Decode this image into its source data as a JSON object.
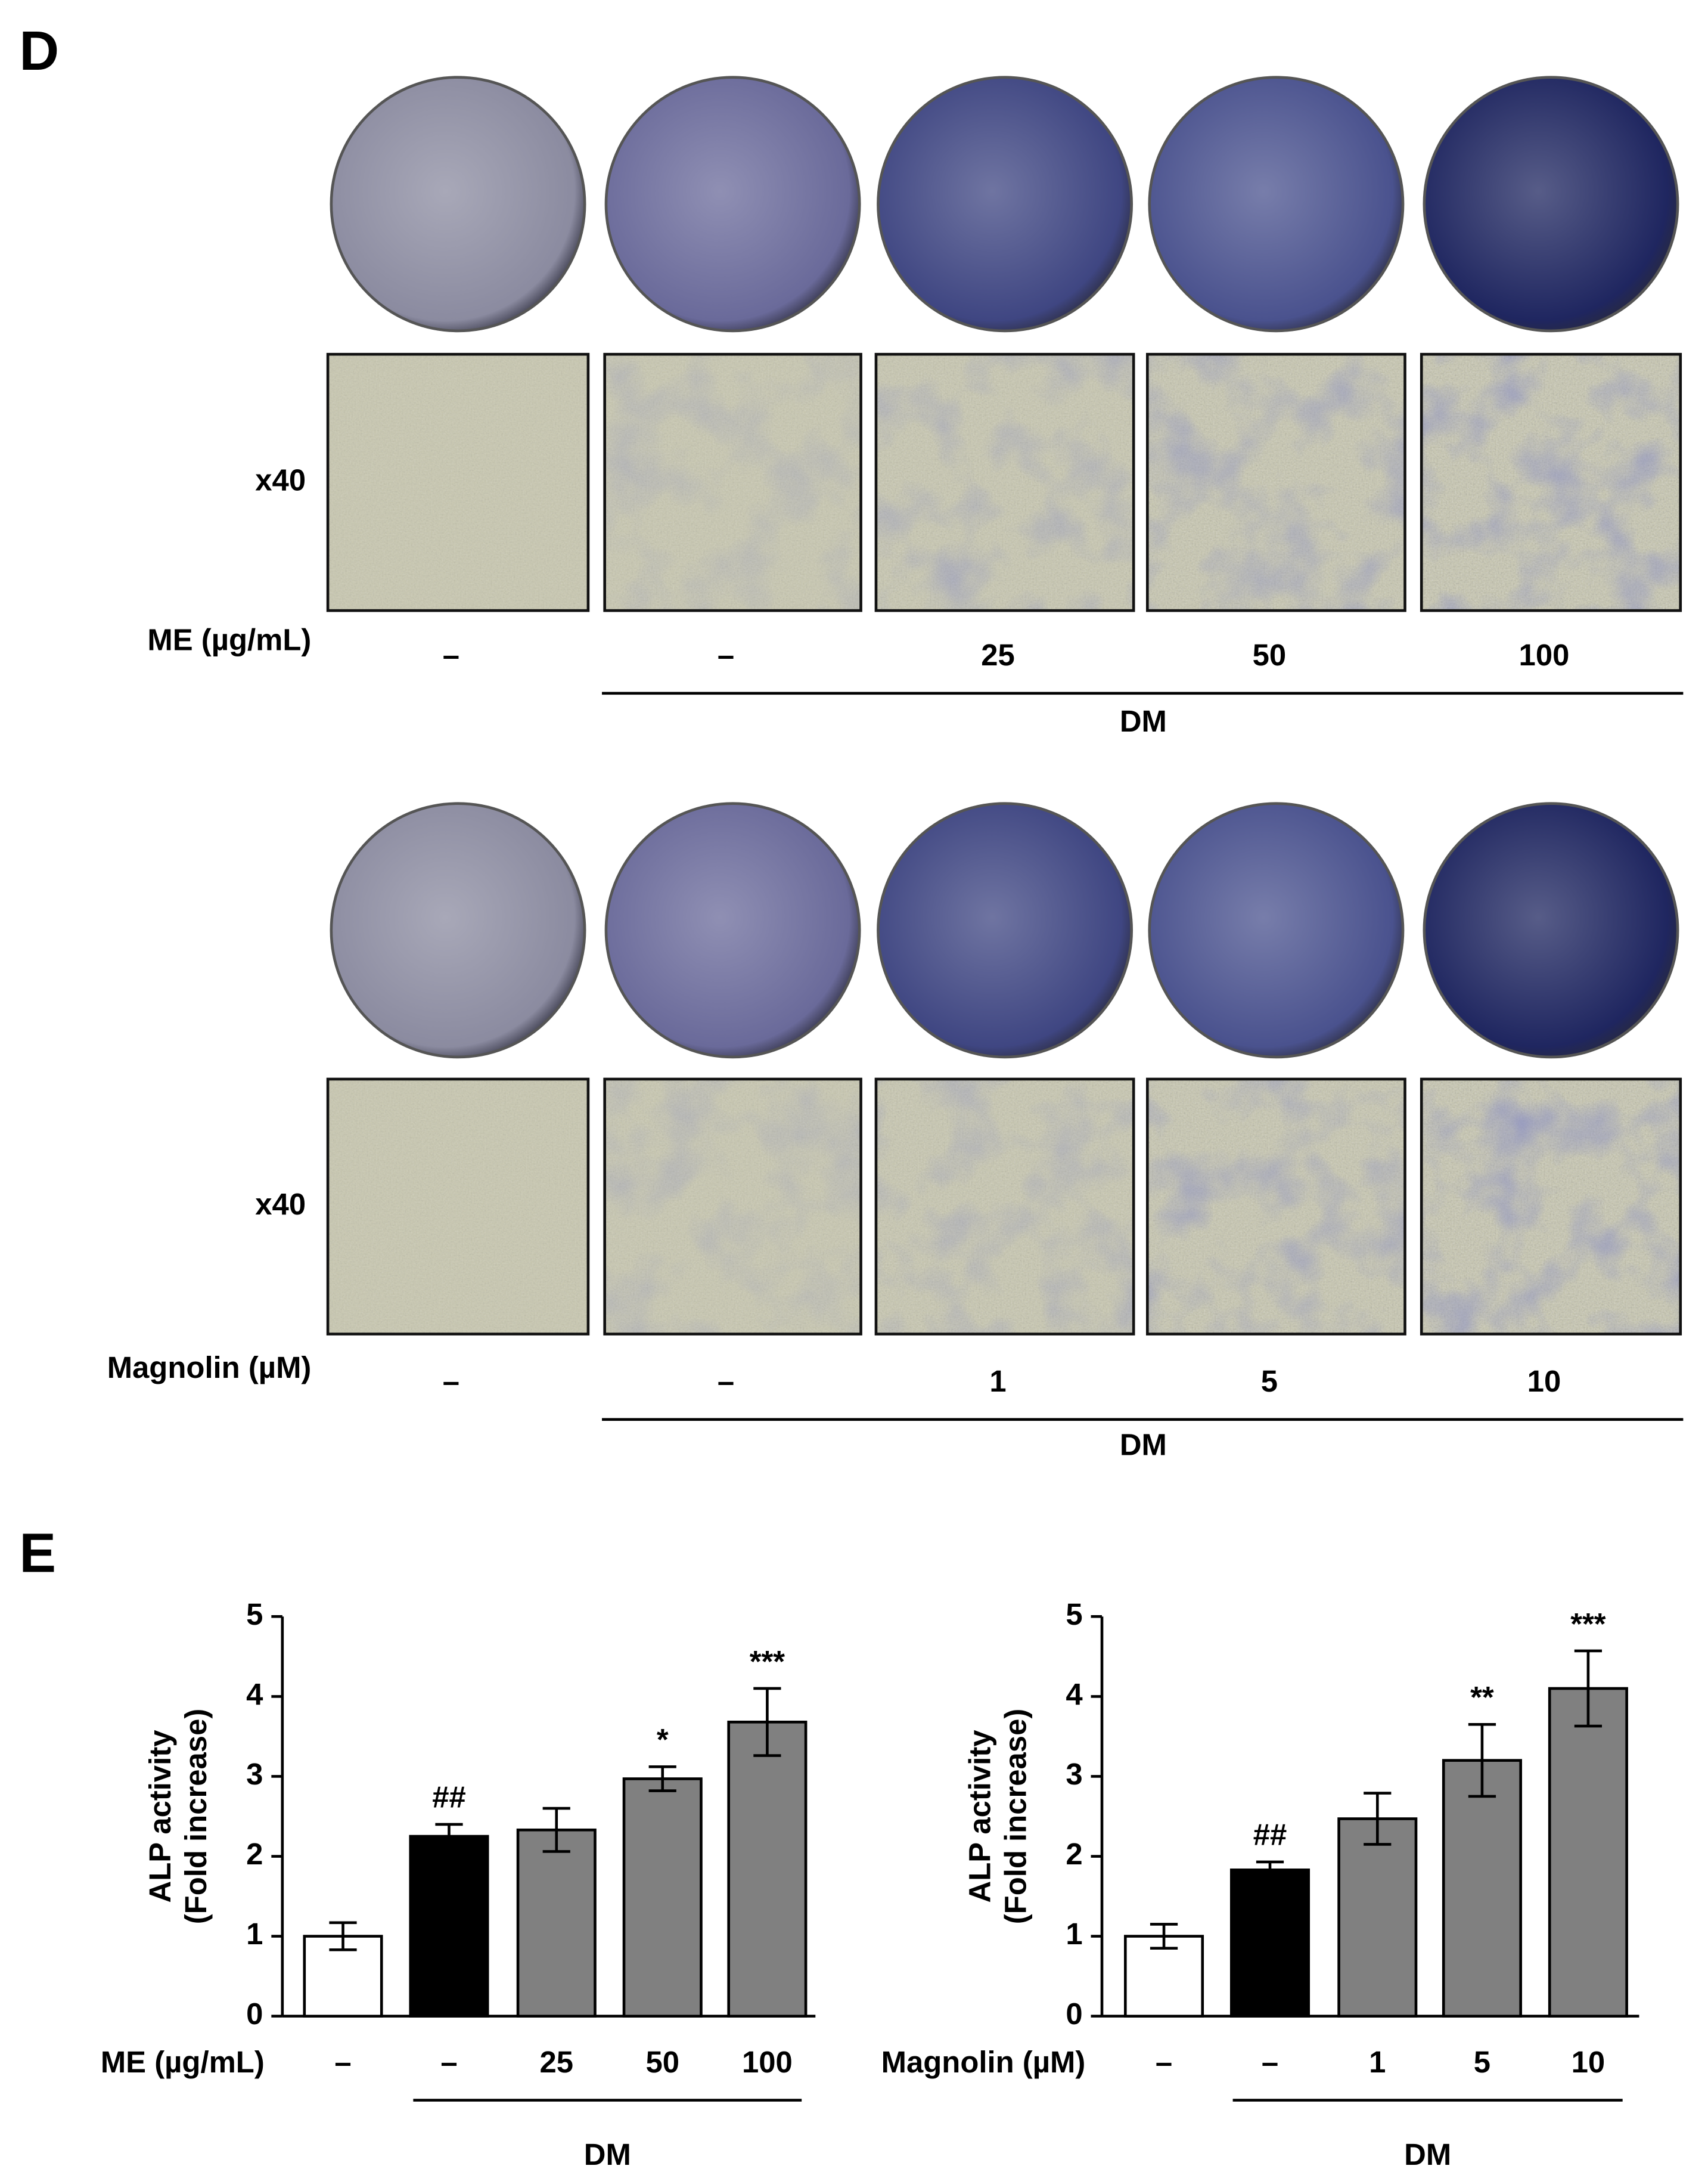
{
  "panel_d": {
    "label": "D",
    "rows": [
      {
        "magnification": "x40",
        "treatment": "ME (µg/mL)",
        "doses": [
          "–",
          "–",
          "25",
          "50",
          "100"
        ],
        "group": "DM"
      },
      {
        "magnification": "x40",
        "treatment": "Magnolin (µM)",
        "doses": [
          "–",
          "–",
          "1",
          "5",
          "10"
        ],
        "group": "DM"
      }
    ]
  },
  "panel_e": {
    "label": "E"
  },
  "chart_data": [
    {
      "type": "bar",
      "y_label": [
        "ALP activity",
        "(Fold increase)"
      ],
      "treatment": "ME (µg/mL)",
      "group": "DM",
      "categories": [
        "–",
        "–",
        "25",
        "50",
        "100"
      ],
      "values": [
        1.0,
        2.25,
        2.33,
        2.97,
        3.68
      ],
      "errors": [
        0.17,
        0.15,
        0.27,
        0.15,
        0.42
      ],
      "annotations": [
        null,
        "##",
        null,
        "*",
        "***"
      ],
      "colors": [
        "#ffffff",
        "#000000",
        "#808080",
        "#808080",
        "#808080"
      ],
      "ylim": [
        0,
        5
      ],
      "yticks": [
        0,
        1,
        2,
        3,
        4,
        5
      ]
    },
    {
      "type": "bar",
      "y_label": [
        "ALP activity",
        "(Fold increase)"
      ],
      "treatment": "Magnolin (µM)",
      "group": "DM",
      "categories": [
        "–",
        "–",
        "1",
        "5",
        "10"
      ],
      "values": [
        1.0,
        1.83,
        2.47,
        3.2,
        4.1
      ],
      "errors": [
        0.15,
        0.1,
        0.32,
        0.45,
        0.47
      ],
      "annotations": [
        null,
        "##",
        null,
        "**",
        "***"
      ],
      "colors": [
        "#ffffff",
        "#000000",
        "#808080",
        "#808080",
        "#808080"
      ],
      "ylim": [
        0,
        5
      ],
      "yticks": [
        0,
        1,
        2,
        3,
        4,
        5
      ]
    }
  ]
}
